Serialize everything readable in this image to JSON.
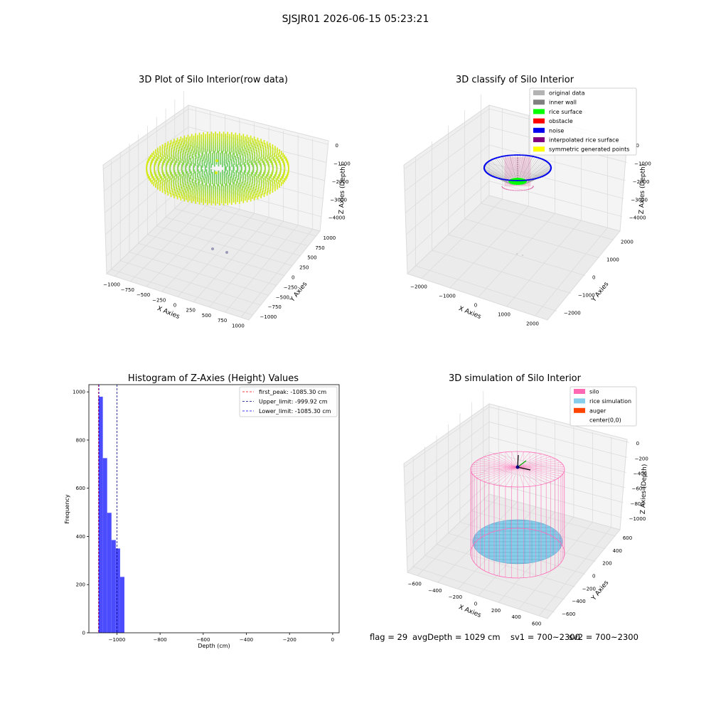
{
  "suptitle": "SJSJR01 2026-06-15 05:23:21",
  "status_line": {
    "flag": "flag = 29",
    "avg_depth": "avgDepth = 1029 cm",
    "sv1": "sv1 = 700~2300",
    "sv2": "sv2 = 700~2300"
  },
  "chart_data": [
    {
      "type": "scatter",
      "title": "3D Plot of Silo Interior(row data)",
      "xlabel": "X Axies",
      "ylabel": "Y Axies",
      "zlabel": "Z Axies (Depth)",
      "x_ticks": [
        "−1000",
        "−750",
        "−500",
        "−250",
        "0",
        "250",
        "500",
        "750",
        "1000"
      ],
      "y_ticks": [
        "−1000",
        "−750",
        "−500",
        "−250",
        "0",
        "250",
        "500",
        "750",
        "1000"
      ],
      "z_ticks": [
        "0",
        "−1000",
        "−2000",
        "−3000",
        "−4000"
      ],
      "colors": {
        "rim": "#d4ea10",
        "center": "#5fcb62",
        "outlier": "#9b9bb8"
      }
    },
    {
      "type": "scatter",
      "title": "3D classify of Silo Interior",
      "xlabel": "X Axies",
      "ylabel": "Y Axies",
      "zlabel": "Z Axies (Depth)",
      "x_ticks": [
        "−2000",
        "−1000",
        "0",
        "1000",
        "2000"
      ],
      "y_ticks": [
        "−2000",
        "−1000",
        "0",
        "1000",
        "2000"
      ],
      "z_ticks": [
        "0",
        "−1000",
        "−2000",
        "−3000",
        "−4000"
      ],
      "legend": [
        {
          "label": "original data",
          "color": "#b3b3b3"
        },
        {
          "label": "inner wall",
          "color": "#808080"
        },
        {
          "label": "rice surface",
          "color": "#00ff00"
        },
        {
          "label": "obstacle",
          "color": "#ff0000"
        },
        {
          "label": "noise",
          "color": "#0000ee"
        },
        {
          "label": "interpolated rice surface",
          "color": "#800080"
        },
        {
          "label": "symmetric generated points",
          "color": "#ffff00"
        }
      ]
    },
    {
      "type": "bar",
      "title": "Histogram of Z-Axies (Height) Values",
      "xlabel": "Depth (cm)",
      "ylabel": "Frequency",
      "xlim": [
        -1130,
        30
      ],
      "ylim": [
        0,
        1030
      ],
      "x_ticks": [
        -1000,
        -800,
        -600,
        -400,
        -200,
        0
      ],
      "x_tick_labels": [
        "−1000",
        "−800",
        "−600",
        "−400",
        "−200",
        "0"
      ],
      "y_ticks": [
        0,
        200,
        400,
        600,
        800,
        1000
      ],
      "y_tick_labels": [
        "0",
        "200",
        "400",
        "600",
        "800",
        "1000"
      ],
      "bar_color": "#4c4cff",
      "bins": [
        {
          "x0": -1085.3,
          "x1": -1065.3,
          "count": 980
        },
        {
          "x0": -1065.3,
          "x1": -1045.3,
          "count": 725
        },
        {
          "x0": -1045.3,
          "x1": -1025.3,
          "count": 498
        },
        {
          "x0": -1025.3,
          "x1": -1005.3,
          "count": 385
        },
        {
          "x0": -1005.3,
          "x1": -985.3,
          "count": 350
        },
        {
          "x0": -985.3,
          "x1": -965.3,
          "count": 232
        }
      ],
      "lines": [
        {
          "value": -1085.3,
          "color": "#ff0000",
          "label": "first_peak: -1085.30 cm"
        },
        {
          "value": -999.92,
          "color": "#000080",
          "label": "Upper_limit: -999.92 cm"
        },
        {
          "value": -1085.3,
          "color": "#0000ff",
          "label": "Lower_limit: -1085.30 cm"
        }
      ]
    },
    {
      "type": "scatter",
      "title": "3D simulation of Silo Interior",
      "xlabel": "X Axies",
      "ylabel": "Y Axies",
      "zlabel": "Z Axies (Depth)",
      "x_ticks": [
        "−600",
        "−400",
        "−200",
        "0",
        "200",
        "400",
        "600"
      ],
      "y_ticks": [
        "−600",
        "−400",
        "−200",
        "0",
        "200",
        "400",
        "600"
      ],
      "z_ticks": [
        "0",
        "−200",
        "−400",
        "−600",
        "−800",
        "−1000"
      ],
      "legend": [
        {
          "label": "silo",
          "color": "#ff69b4"
        },
        {
          "label": "rice simulation",
          "color": "#87ceeb"
        },
        {
          "label": "auger",
          "color": "#ff4500"
        },
        {
          "label": "center(0,0)",
          "color": "#ffffff"
        }
      ]
    }
  ]
}
